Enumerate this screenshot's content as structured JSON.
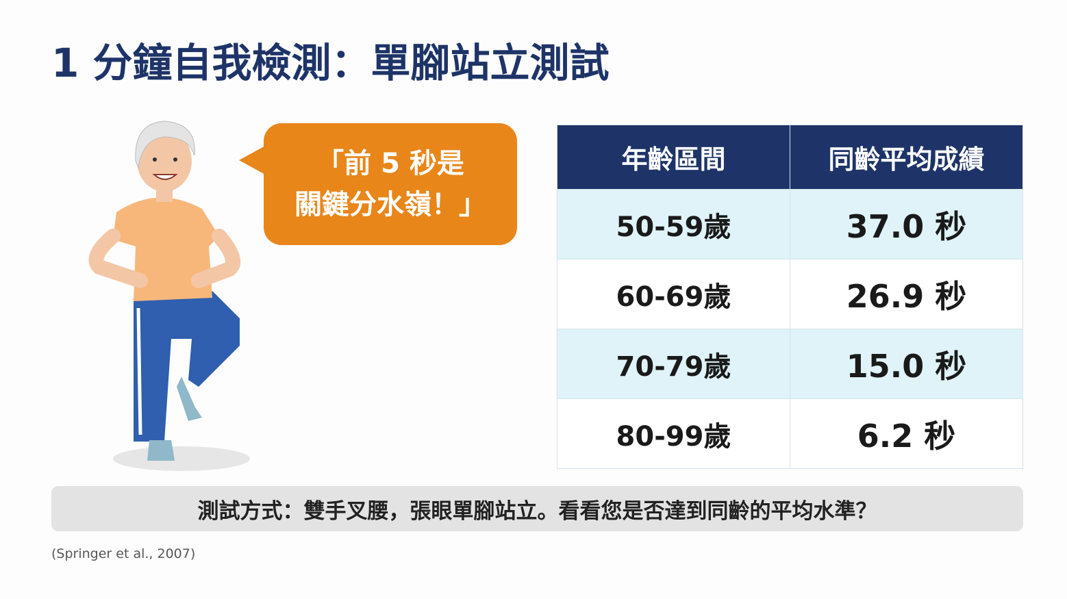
{
  "header": {
    "title": "1 分鐘自我檢測：單腳站立測試"
  },
  "bubble": {
    "lines": [
      "「前 5 秒是",
      "關鍵分水嶺！」"
    ]
  },
  "table": {
    "columns": [
      "年齡區間",
      "同齡平均成績"
    ],
    "rows": [
      [
        "50-59歲",
        "37.0 秒"
      ],
      [
        "60-69歲",
        "26.9 秒"
      ],
      [
        "70-79歲",
        "15.0 秒"
      ],
      [
        "80-99歲",
        "6.2 秒"
      ]
    ]
  },
  "note": "測試方式：雙手叉腰，張眼單腳站立。看看您是否達到同齡的平均水準？",
  "citation": "(Springer et al., 2007)"
}
